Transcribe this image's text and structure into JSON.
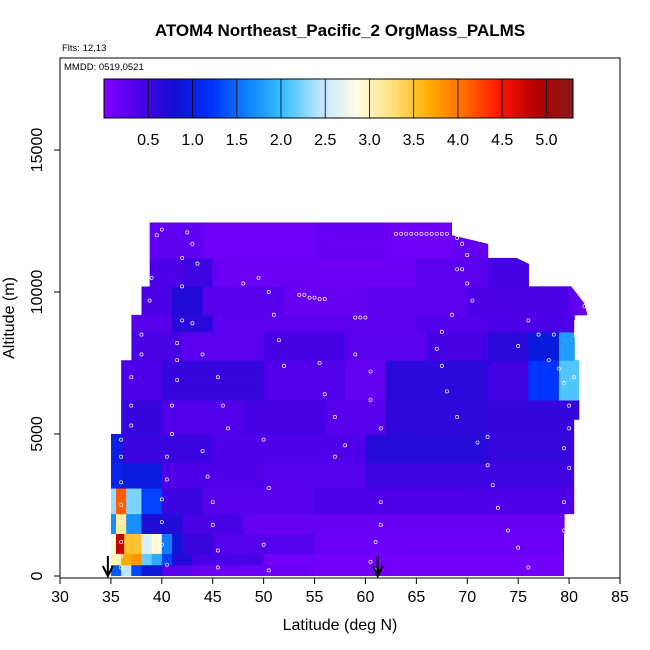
{
  "chart_data": {
    "type": "heatmap",
    "title": "ATOM4 Northeast_Pacific_2 OrgMass_PALMS",
    "flights_label": "Flts: 12,13",
    "date_label": "MMDD: 0519,0521",
    "xlabel": "Latitude (deg N)",
    "ylabel": "Altitude (m)",
    "xlim": [
      30,
      85
    ],
    "ylim": [
      0,
      17500
    ],
    "x_ticks": [
      "30",
      "35",
      "40",
      "45",
      "50",
      "55",
      "60",
      "65",
      "70",
      "75",
      "80",
      "85"
    ],
    "y_ticks": [
      "0",
      "5000",
      "10000",
      "15000"
    ],
    "colorbar": {
      "range": [
        0,
        5.3
      ],
      "tick_labels": [
        "0.5",
        "1.0",
        "1.5",
        "2.0",
        "2.5",
        "3.0",
        "3.5",
        "4.0",
        "4.5",
        "5.0"
      ],
      "colors": [
        "#7f00ff",
        "#4b00e6",
        "#1010d0",
        "#0033ff",
        "#0f84ff",
        "#3cc0ff",
        "#bfe6ff",
        "#fffbe6",
        "#ffe27a",
        "#ffae00",
        "#ff6a00",
        "#ff1200",
        "#b00000",
        "#8b1a1a"
      ]
    },
    "arrows_lat": [
      34.7,
      61.2
    ],
    "domain_outline": [
      [
        35,
        0
      ],
      [
        35,
        5000
      ],
      [
        36,
        5000
      ],
      [
        36,
        7600
      ],
      [
        37,
        7600
      ],
      [
        37,
        9200
      ],
      [
        38,
        9200
      ],
      [
        38,
        10200
      ],
      [
        38.8,
        10200
      ],
      [
        38.8,
        12450
      ],
      [
        68.5,
        12450
      ],
      [
        68.5,
        12000
      ],
      [
        72,
        11700
      ],
      [
        76,
        11000
      ],
      [
        80,
        10300
      ],
      [
        81.5,
        9600
      ],
      [
        81.8,
        9200
      ],
      [
        80.5,
        9000
      ],
      [
        80.5,
        8400
      ],
      [
        81,
        8400
      ],
      [
        81,
        5500
      ],
      [
        80.5,
        5500
      ],
      [
        80.5,
        1500
      ],
      [
        79.5,
        1500
      ],
      [
        79.5,
        0
      ]
    ],
    "bands": [
      {
        "alt": [
          0,
          400
        ],
        "cells": [
          [
            35,
            36,
            1.6
          ],
          [
            36,
            37,
            2.3
          ],
          [
            37,
            38,
            1.4
          ],
          [
            38,
            40,
            0.8
          ],
          [
            40,
            43,
            0.3
          ],
          [
            43,
            47,
            0.2
          ],
          [
            47,
            55,
            0.15
          ],
          [
            55,
            79.5,
            0.1
          ]
        ]
      },
      {
        "alt": [
          400,
          800
        ],
        "cells": [
          [
            35,
            36,
            3.0
          ],
          [
            36,
            37,
            4.2
          ],
          [
            37,
            38,
            3.6
          ],
          [
            38,
            39,
            2.3
          ],
          [
            39,
            40,
            1.7
          ],
          [
            40,
            41,
            1.3
          ],
          [
            41,
            43,
            0.8
          ],
          [
            43,
            50,
            0.4
          ],
          [
            50,
            79.5,
            0.1
          ]
        ]
      },
      {
        "alt": [
          800,
          1500
        ],
        "cells": [
          [
            35,
            35.5,
            2.6
          ],
          [
            35.5,
            36.3,
            4.8
          ],
          [
            36.3,
            37,
            4.0
          ],
          [
            37,
            38,
            3.3
          ],
          [
            38,
            39,
            2.8
          ],
          [
            39,
            40,
            2.6
          ],
          [
            40,
            41,
            1.6
          ],
          [
            41,
            42,
            1.0
          ],
          [
            42,
            45,
            0.5
          ],
          [
            45,
            55,
            0.35
          ],
          [
            55,
            79.5,
            0.15
          ]
        ]
      },
      {
        "alt": [
          1500,
          2200
        ],
        "cells": [
          [
            35,
            35.5,
            1.8
          ],
          [
            35.5,
            36.5,
            2.8
          ],
          [
            36.5,
            38,
            1.7
          ],
          [
            38,
            42,
            0.8
          ],
          [
            42,
            48,
            0.4
          ],
          [
            48,
            79.5,
            0.2
          ]
        ]
      },
      {
        "alt": [
          2200,
          3100
        ],
        "cells": [
          [
            35,
            35.5,
            2.2
          ],
          [
            35.5,
            36.5,
            4.4
          ],
          [
            36.5,
            38,
            2.0
          ],
          [
            38,
            40,
            1.3
          ],
          [
            40,
            44,
            0.6
          ],
          [
            44,
            55,
            0.3
          ],
          [
            55,
            80.5,
            0.4
          ]
        ]
      },
      {
        "alt": [
          3100,
          4000
        ],
        "cells": [
          [
            35,
            36,
            1.2
          ],
          [
            36,
            40,
            0.9
          ],
          [
            40,
            50,
            0.4
          ],
          [
            50,
            60,
            0.3
          ],
          [
            60,
            70,
            0.5
          ],
          [
            70,
            80.5,
            0.55
          ]
        ]
      },
      {
        "alt": [
          4000,
          5000
        ],
        "cells": [
          [
            35,
            36,
            1.0
          ],
          [
            36,
            45,
            0.6
          ],
          [
            45,
            55,
            0.35
          ],
          [
            55,
            60,
            0.4
          ],
          [
            60,
            72,
            0.6
          ],
          [
            72,
            81,
            0.55
          ]
        ]
      },
      {
        "alt": [
          5000,
          6200
        ],
        "cells": [
          [
            36,
            40,
            0.5
          ],
          [
            40,
            48,
            0.35
          ],
          [
            48,
            56,
            0.5
          ],
          [
            56,
            62,
            0.3
          ],
          [
            62,
            72,
            0.65
          ],
          [
            72,
            81,
            0.5
          ]
        ]
      },
      {
        "alt": [
          6200,
          7600
        ],
        "cells": [
          [
            36,
            40,
            0.4
          ],
          [
            40,
            50,
            0.5
          ],
          [
            50,
            58,
            0.35
          ],
          [
            58,
            62,
            0.25
          ],
          [
            62,
            72,
            0.6
          ],
          [
            72,
            76,
            0.5
          ],
          [
            76,
            79,
            1.1
          ],
          [
            79,
            81,
            2.1
          ]
        ]
      },
      {
        "alt": [
          7600,
          8600
        ],
        "cells": [
          [
            37,
            42,
            0.4
          ],
          [
            42,
            50,
            0.3
          ],
          [
            50,
            58,
            0.4
          ],
          [
            58,
            66,
            0.3
          ],
          [
            66,
            72,
            0.5
          ],
          [
            72,
            76,
            0.6
          ],
          [
            76,
            79,
            1.0
          ],
          [
            79,
            80.5,
            1.6
          ]
        ]
      },
      {
        "alt": [
          8600,
          9200
        ],
        "cells": [
          [
            37,
            41,
            0.35
          ],
          [
            41,
            45,
            0.6
          ],
          [
            45,
            55,
            0.3
          ],
          [
            55,
            65,
            0.25
          ],
          [
            65,
            72,
            0.35
          ],
          [
            72,
            80.5,
            0.45
          ]
        ]
      },
      {
        "alt": [
          9200,
          10200
        ],
        "cells": [
          [
            38,
            41,
            0.4
          ],
          [
            41,
            44,
            0.8
          ],
          [
            44,
            52,
            0.3
          ],
          [
            52,
            60,
            0.2
          ],
          [
            60,
            70,
            0.25
          ],
          [
            70,
            80,
            0.4
          ],
          [
            80,
            81.8,
            0.3
          ]
        ]
      },
      {
        "alt": [
          10200,
          11200
        ],
        "cells": [
          [
            38.8,
            42,
            0.35
          ],
          [
            42,
            45,
            0.5
          ],
          [
            45,
            55,
            0.2
          ],
          [
            55,
            65,
            0.15
          ],
          [
            65,
            72,
            0.3
          ],
          [
            72,
            76,
            0.4
          ]
        ]
      },
      {
        "alt": [
          11200,
          12450
        ],
        "cells": [
          [
            38.8,
            44,
            0.25
          ],
          [
            44,
            55,
            0.12
          ],
          [
            55,
            62,
            0.2
          ],
          [
            62,
            68.5,
            0.15
          ],
          [
            68.5,
            72,
            0.2
          ]
        ]
      }
    ],
    "samples": [
      [
        36.0,
        300
      ],
      [
        36.0,
        700
      ],
      [
        36.0,
        1200
      ],
      [
        36.0,
        1900
      ],
      [
        36.0,
        2500
      ],
      [
        36.0,
        3300
      ],
      [
        36.0,
        4200
      ],
      [
        36.0,
        4800
      ],
      [
        37.0,
        5300
      ],
      [
        37.0,
        6000
      ],
      [
        37.0,
        7000
      ],
      [
        38.0,
        7800
      ],
      [
        38.0,
        8500
      ],
      [
        38.8,
        9700
      ],
      [
        39.0,
        10500
      ],
      [
        39.5,
        12000
      ],
      [
        40.0,
        12200
      ],
      [
        42.5,
        12100
      ],
      [
        43.0,
        11700
      ],
      [
        43.5,
        11000
      ],
      [
        42.0,
        11200
      ],
      [
        42.0,
        10200
      ],
      [
        42.0,
        9000
      ],
      [
        41.5,
        8200
      ],
      [
        41.5,
        7600
      ],
      [
        41.5,
        6900
      ],
      [
        41.0,
        6000
      ],
      [
        41.0,
        5000
      ],
      [
        40.5,
        4200
      ],
      [
        40.5,
        3400
      ],
      [
        40.0,
        2700
      ],
      [
        40.0,
        1900
      ],
      [
        40.0,
        1100
      ],
      [
        40.5,
        400
      ],
      [
        43.0,
        8900
      ],
      [
        44.0,
        7800
      ],
      [
        45.5,
        7000
      ],
      [
        46.0,
        6000
      ],
      [
        46.5,
        5200
      ],
      [
        44.0,
        4400
      ],
      [
        44.5,
        3500
      ],
      [
        45.0,
        2600
      ],
      [
        45.0,
        1800
      ],
      [
        45.5,
        900
      ],
      [
        45.5,
        300
      ],
      [
        48.0,
        10300
      ],
      [
        49.5,
        10500
      ],
      [
        50.5,
        10000
      ],
      [
        51.0,
        9200
      ],
      [
        51.5,
        8300
      ],
      [
        52.0,
        7400
      ],
      [
        50.0,
        4800
      ],
      [
        50.5,
        3100
      ],
      [
        50.0,
        1100
      ],
      [
        50.5,
        200
      ],
      [
        53.5,
        9900
      ],
      [
        54.0,
        9900
      ],
      [
        54.5,
        9800
      ],
      [
        55.0,
        9800
      ],
      [
        55.5,
        9750
      ],
      [
        56.0,
        9750
      ],
      [
        55.5,
        7500
      ],
      [
        56.0,
        6400
      ],
      [
        57.0,
        5600
      ],
      [
        57.0,
        4200
      ],
      [
        58.0,
        4600
      ],
      [
        59.0,
        9100
      ],
      [
        59.5,
        9100
      ],
      [
        60.0,
        9100
      ],
      [
        59.0,
        7800
      ],
      [
        60.5,
        7200
      ],
      [
        60.5,
        6200
      ],
      [
        61.5,
        5200
      ],
      [
        61.5,
        2600
      ],
      [
        61.5,
        1800
      ],
      [
        61.0,
        1200
      ],
      [
        60.5,
        500
      ],
      [
        61.0,
        200
      ],
      [
        63.0,
        12050
      ],
      [
        63.5,
        12050
      ],
      [
        64.0,
        12050
      ],
      [
        64.5,
        12050
      ],
      [
        65.0,
        12050
      ],
      [
        65.5,
        12050
      ],
      [
        66.0,
        12050
      ],
      [
        66.5,
        12050
      ],
      [
        67.0,
        12050
      ],
      [
        67.5,
        12050
      ],
      [
        68.0,
        12050
      ],
      [
        69.0,
        11900
      ],
      [
        69.5,
        11700
      ],
      [
        70.0,
        11300
      ],
      [
        69.0,
        10800
      ],
      [
        69.5,
        10800
      ],
      [
        70.0,
        10300
      ],
      [
        70.5,
        9700
      ],
      [
        68.5,
        9200
      ],
      [
        67.5,
        8600
      ],
      [
        67.0,
        8000
      ],
      [
        67.5,
        7400
      ],
      [
        68.0,
        6500
      ],
      [
        69.0,
        5600
      ],
      [
        71.0,
        4700
      ],
      [
        72.0,
        4900
      ],
      [
        72.0,
        3900
      ],
      [
        72.5,
        3200
      ],
      [
        73.0,
        2400
      ],
      [
        74.0,
        1600
      ],
      [
        75.0,
        1000
      ],
      [
        76.0,
        300
      ],
      [
        75.0,
        8100
      ],
      [
        76.0,
        9000
      ],
      [
        77.0,
        8500
      ],
      [
        78.5,
        8500
      ],
      [
        78.0,
        7600
      ],
      [
        79.0,
        7300
      ],
      [
        79.5,
        6800
      ],
      [
        80.5,
        7000
      ],
      [
        80.0,
        6000
      ],
      [
        80.0,
        5200
      ],
      [
        79.5,
        4500
      ],
      [
        80.0,
        3800
      ],
      [
        79.5,
        2600
      ],
      [
        79.5,
        1600
      ],
      [
        81.5,
        9500
      ]
    ]
  }
}
